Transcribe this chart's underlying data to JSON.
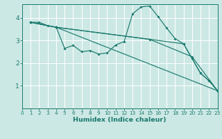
{
  "xlabel": "Humidex (Indice chaleur)",
  "bg_color": "#cce8e4",
  "line_color": "#1a7a6e",
  "grid_color": "#b0d8d4",
  "xlim": [
    0,
    23
  ],
  "ylim": [
    0.0,
    4.6
  ],
  "yticks": [
    1,
    2,
    3,
    4
  ],
  "xticks": [
    0,
    1,
    2,
    3,
    4,
    5,
    6,
    7,
    8,
    9,
    10,
    11,
    12,
    13,
    14,
    15,
    16,
    17,
    18,
    19,
    20,
    21,
    22,
    23
  ],
  "lines": [
    {
      "x": [
        1,
        2,
        3,
        4,
        5,
        6,
        7,
        8,
        9,
        10,
        11,
        12,
        13,
        14,
        15,
        16,
        17,
        18,
        19,
        20,
        21,
        22,
        23
      ],
      "y": [
        3.8,
        3.8,
        3.65,
        3.58,
        2.65,
        2.78,
        2.5,
        2.55,
        2.4,
        2.45,
        2.8,
        2.95,
        4.18,
        4.48,
        4.52,
        4.05,
        3.55,
        3.08,
        2.85,
        2.2,
        1.55,
        1.22,
        0.78
      ]
    },
    {
      "x": [
        1,
        4,
        23
      ],
      "y": [
        3.8,
        3.58,
        0.78
      ]
    },
    {
      "x": [
        1,
        4,
        15,
        20,
        23
      ],
      "y": [
        3.8,
        3.58,
        3.05,
        2.28,
        0.78
      ]
    },
    {
      "x": [
        1,
        4,
        15,
        19,
        21,
        22,
        23
      ],
      "y": [
        3.8,
        3.58,
        3.05,
        2.85,
        1.55,
        1.22,
        0.78
      ]
    }
  ]
}
